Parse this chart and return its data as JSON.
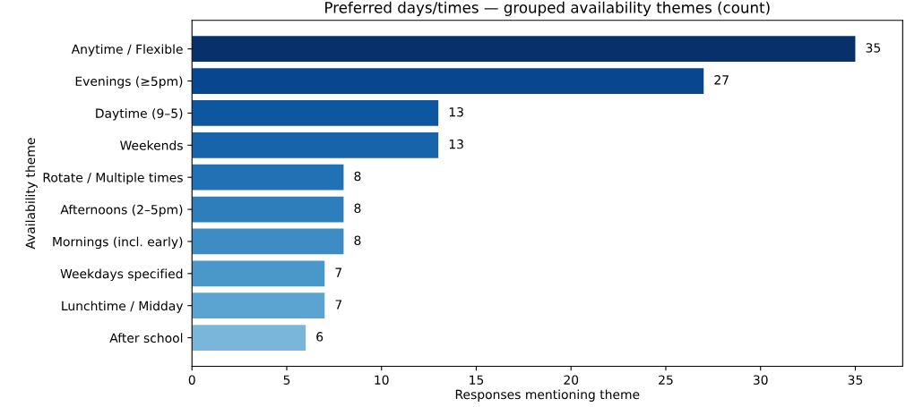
{
  "chart_data": {
    "type": "bar",
    "orientation": "horizontal",
    "title": "Preferred days/times — grouped availability themes (count)",
    "xlabel": "Responses mentioning theme",
    "ylabel": "Availability theme",
    "categories": [
      "Anytime / Flexible",
      "Evenings (≥5pm)",
      "Daytime (9–5)",
      "Weekends",
      "Rotate / Multiple times",
      "Afternoons (2–5pm)",
      "Mornings (incl. early)",
      "Weekdays specified",
      "Lunchtime / Midday",
      "After school"
    ],
    "values": [
      35,
      27,
      13,
      13,
      8,
      8,
      8,
      7,
      7,
      6
    ],
    "colors": [
      "#08306b",
      "#08468f",
      "#0d57a1",
      "#1764ab",
      "#2171b5",
      "#2e7ebc",
      "#3d8dc4",
      "#4a98c9",
      "#5ba3d0",
      "#7ab6d9"
    ],
    "xlim": [
      0,
      37.5
    ],
    "xticks": [
      0,
      5,
      10,
      15,
      20,
      25,
      30,
      35
    ],
    "data_labels": true
  }
}
